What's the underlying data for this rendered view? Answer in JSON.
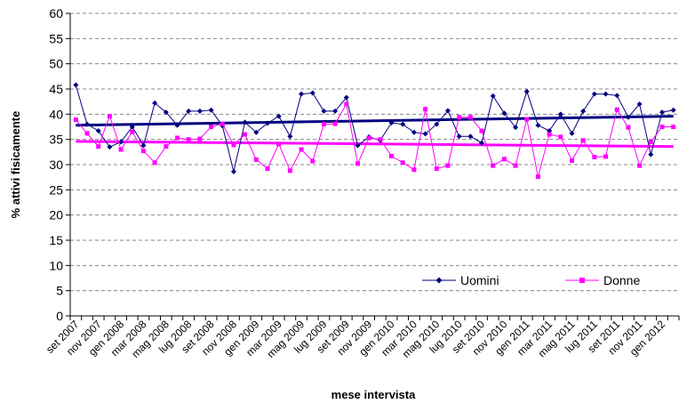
{
  "chart_data": {
    "type": "line",
    "title": "",
    "xlabel": "mese intervista",
    "ylabel": "% attivi fisicamente",
    "ylim": [
      0,
      60
    ],
    "yticks": [
      0,
      5,
      10,
      15,
      20,
      25,
      30,
      35,
      40,
      45,
      50,
      55,
      60
    ],
    "grid": "horizontal dashed",
    "legend_position": "bottom-right inside plot",
    "x_tick_labels": [
      "set 2007",
      "nov 2007",
      "gen 2008",
      "mar 2008",
      "mag 2008",
      "lug 2008",
      "set 2008",
      "nov 2008",
      "gen 2009",
      "mar 2009",
      "mag 2009",
      "lug 2009",
      "set 2009",
      "nov 2009",
      "gen 2010",
      "mar 2010",
      "mag 2010",
      "lug 2010",
      "set 2010",
      "nov 2010",
      "gen 2011",
      "mar 2011",
      "mag 2011",
      "lug 2011",
      "set 2011",
      "nov 2011",
      "gen 2012"
    ],
    "x": [
      "set 2007",
      "ott 2007",
      "nov 2007",
      "dic 2007",
      "gen 2008",
      "feb 2008",
      "mar 2008",
      "apr 2008",
      "mag 2008",
      "giu 2008",
      "lug 2008",
      "ago 2008",
      "set 2008",
      "ott 2008",
      "nov 2008",
      "dic 2008",
      "gen 2009",
      "feb 2009",
      "mar 2009",
      "apr 2009",
      "mag 2009",
      "giu 2009",
      "lug 2009",
      "ago 2009",
      "set 2009",
      "ott 2009",
      "nov 2009",
      "dic 2009",
      "gen 2010",
      "feb 2010",
      "mar 2010",
      "apr 2010",
      "mag 2010",
      "giu 2010",
      "lug 2010",
      "ago 2010",
      "set 2010",
      "ott 2010",
      "nov 2010",
      "dic 2010",
      "gen 2011",
      "feb 2011",
      "mar 2011",
      "apr 2011",
      "mag 2011",
      "giu 2011",
      "lug 2011",
      "ago 2011",
      "set 2011",
      "ott 2011",
      "nov 2011",
      "dic 2011",
      "gen 2012",
      "feb 2012"
    ],
    "series": [
      {
        "name": "Uomini",
        "color": "#000080",
        "marker": "diamond",
        "values": [
          45.8,
          38.0,
          36.7,
          33.5,
          34.5,
          37.5,
          33.8,
          42.2,
          40.4,
          37.8,
          40.6,
          40.6,
          40.8,
          37.7,
          28.6,
          38.4,
          36.4,
          38.2,
          39.6,
          35.6,
          44.0,
          44.2,
          40.6,
          40.6,
          43.3,
          33.8,
          35.5,
          34.8,
          38.3,
          38.0,
          36.4,
          36.1,
          38.0,
          40.7,
          35.6,
          35.6,
          34.3,
          43.6,
          40.2,
          37.4,
          44.5,
          37.8,
          36.7,
          40.0,
          36.2,
          40.6,
          44.0,
          44.0,
          43.7,
          39.4,
          42.0,
          32.0,
          40.4,
          40.8
        ],
        "trend": [
          37.8,
          39.6
        ]
      },
      {
        "name": "Donne",
        "color": "#ff00ff",
        "marker": "square",
        "values": [
          38.9,
          36.2,
          33.6,
          39.6,
          33.0,
          36.5,
          32.7,
          30.4,
          33.6,
          35.3,
          35.0,
          35.1,
          37.5,
          38.1,
          33.9,
          36.0,
          31.0,
          29.2,
          34.1,
          28.8,
          33.0,
          30.7,
          38.0,
          38.1,
          42.0,
          30.2,
          35.3,
          35.0,
          31.7,
          30.4,
          29.0,
          41.0,
          29.2,
          29.8,
          39.4,
          39.4,
          36.7,
          29.8,
          31.1,
          29.8,
          39.0,
          27.6,
          36.0,
          35.5,
          30.8,
          34.8,
          31.5,
          31.6,
          40.9,
          37.4,
          29.8,
          34.5,
          37.5,
          37.5
        ],
        "trend": [
          34.6,
          33.6
        ]
      }
    ]
  }
}
